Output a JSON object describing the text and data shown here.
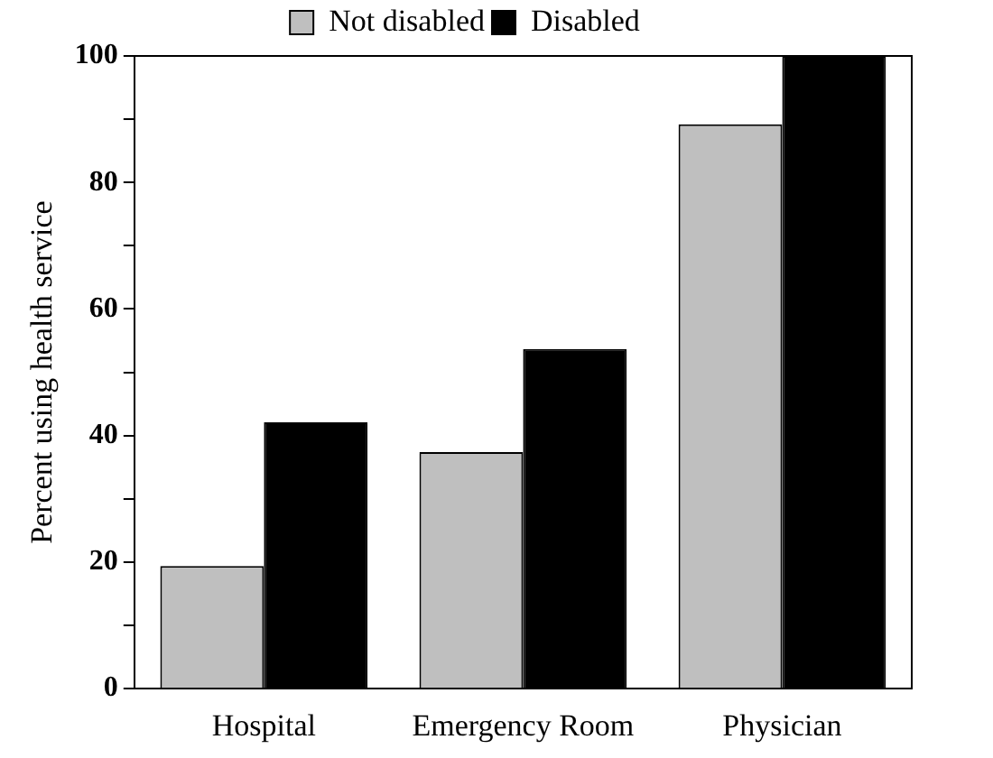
{
  "chart_data": {
    "type": "bar",
    "ylabel": "Percent using health service",
    "categories": [
      "Hospital",
      "Emergency Room",
      "Physician"
    ],
    "series": [
      {
        "name": "Not disabled",
        "color": "#bfbfbf",
        "values": [
          19.4,
          37.4,
          89.2
        ]
      },
      {
        "name": "Disabled",
        "color": "#000000",
        "values": [
          42.1,
          53.7,
          100
        ]
      }
    ],
    "ylim": [
      0,
      100
    ],
    "yticks": [
      0,
      {
        "value": 10,
        "label": null
      },
      20,
      {
        "value": 30,
        "label": null
      },
      40,
      {
        "value": 50,
        "label": null
      },
      60,
      {
        "value": 70,
        "label": null
      },
      80,
      {
        "value": 90,
        "label": null
      },
      100
    ],
    "grid": false,
    "legend": "top"
  }
}
